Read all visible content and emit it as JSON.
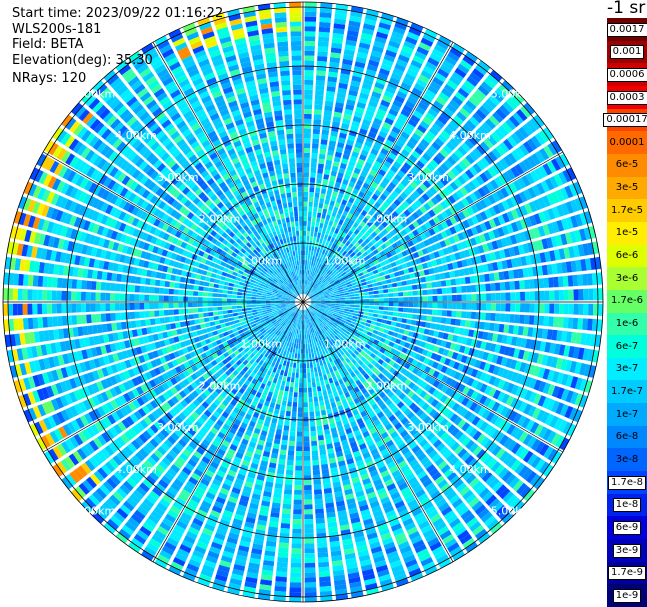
{
  "header": {
    "start_time": "Start time: 2023/09/22 01:16:22",
    "instrument": "WLS200s-181",
    "field": "Field: BETA",
    "elevation": "Elevation(deg): 35.30",
    "nrays": "NRays: 120",
    "unit": "-1 sr"
  },
  "chart_data": {
    "type": "heatmap",
    "projection": "polar-ppi",
    "n_rays": 120,
    "ring_labels": [
      "1.00km",
      "2.00km",
      "3.00km",
      "4.00km",
      "5.00km"
    ],
    "radial_spokes": 12,
    "max_range_km": 5.1,
    "colorbar": {
      "labels": [
        "0.0017",
        "0.001",
        "0.0006",
        "0.0003",
        "0.00017",
        "0.0001",
        "6e-5",
        "3e-5",
        "1.7e-5",
        "1e-5",
        "6e-6",
        "3e-6",
        "1.7e-6",
        "1e-6",
        "6e-7",
        "3e-7",
        "1.7e-7",
        "1e-7",
        "6e-8",
        "3e-8",
        "1.7e-8",
        "1e-8",
        "6e-9",
        "3e-9",
        "1.7e-9",
        "1e-9"
      ],
      "colors": [
        "#6e0000",
        "#9e0000",
        "#cc0000",
        "#f00000",
        "#ff4400",
        "#ff6a00",
        "#ff8c00",
        "#ffaa00",
        "#ffcc00",
        "#ffee00",
        "#ddff00",
        "#aaff33",
        "#66ff66",
        "#33ffaa",
        "#00ffdd",
        "#00eeff",
        "#00ccff",
        "#00aaff",
        "#0088ff",
        "#0066ff",
        "#0044ff",
        "#0022ee",
        "#0000dd",
        "#0000bb",
        "#000099",
        "#000077"
      ]
    }
  }
}
